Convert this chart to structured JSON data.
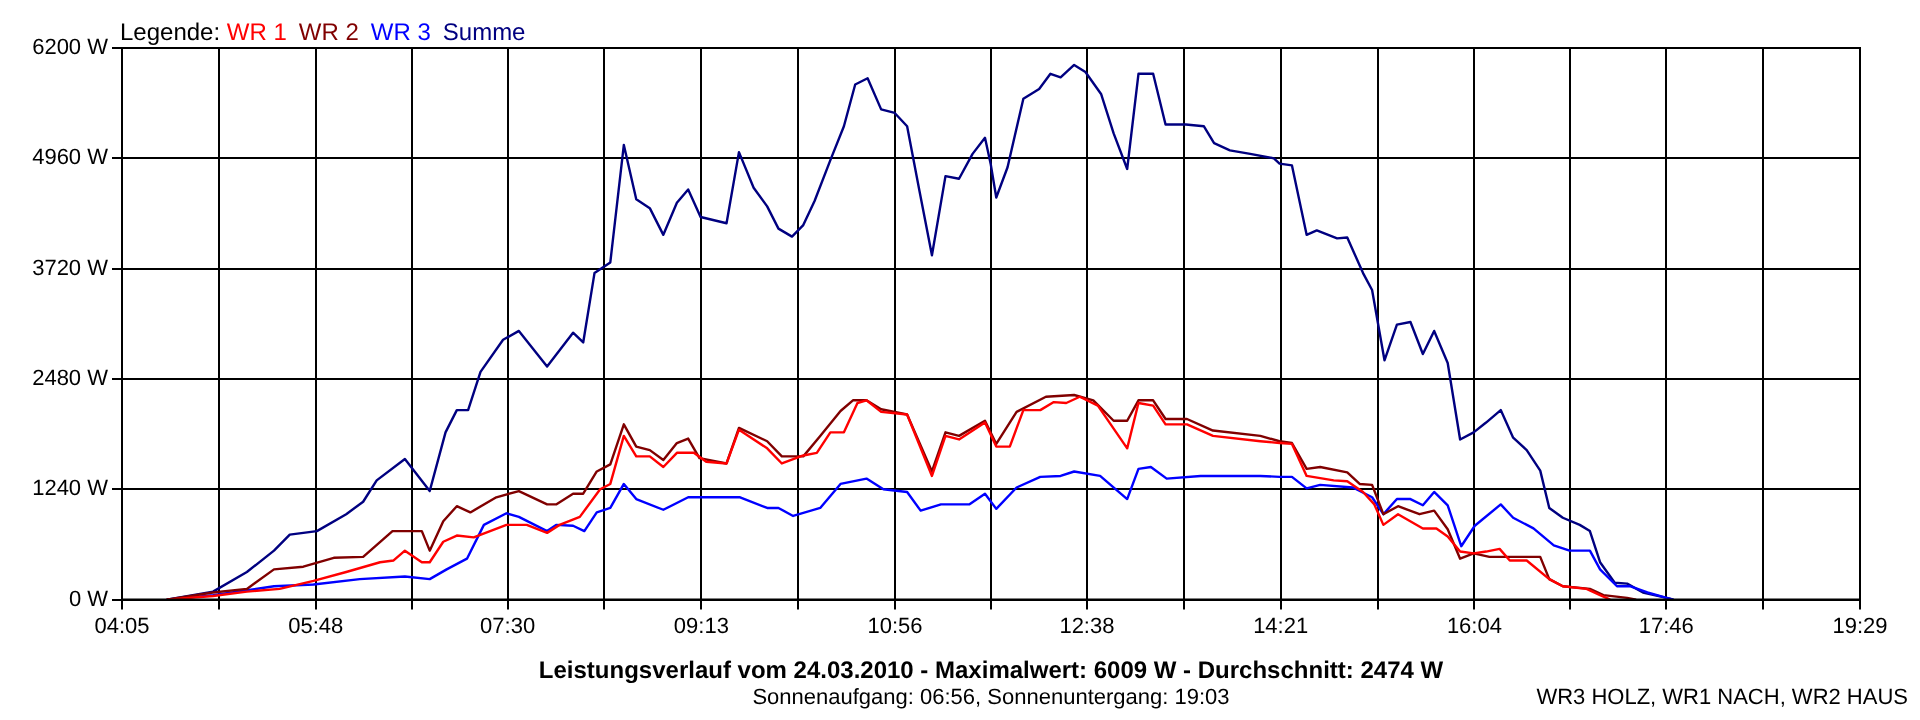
{
  "chart_data": {
    "type": "line",
    "title": "Leistungsverlauf vom 24.03.2010 - Maximalwert: 6009 W - Durchschnitt: 2474 W",
    "subtitle": "Sonnenaufgang: 06:56, Sonnenuntergang: 19:03",
    "annotations": [
      "WR3 HOLZ, WR1 NACH, WR2 HAUS"
    ],
    "legend_title": "Legende:",
    "legend": "top left",
    "grid": true,
    "marker": "none",
    "line_style": "solid",
    "xlim": [
      4.0833,
      19.4833
    ],
    "xticks": [
      {
        "value": 4.0833,
        "label": "04:05"
      },
      {
        "value": 4.9417,
        "label": null
      },
      {
        "value": 5.8,
        "label": "05:48"
      },
      {
        "value": 6.65,
        "label": null
      },
      {
        "value": 7.5,
        "label": "07:30"
      },
      {
        "value": 8.3583,
        "label": null
      },
      {
        "value": 9.2167,
        "label": "09:13"
      },
      {
        "value": 10.075,
        "label": null
      },
      {
        "value": 10.9333,
        "label": "10:56"
      },
      {
        "value": 11.7833,
        "label": null
      },
      {
        "value": 12.6333,
        "label": "12:38"
      },
      {
        "value": 13.4917,
        "label": null
      },
      {
        "value": 14.35,
        "label": "14:21"
      },
      {
        "value": 15.2083,
        "label": null
      },
      {
        "value": 16.0667,
        "label": "16:04"
      },
      {
        "value": 16.9167,
        "label": null
      },
      {
        "value": 17.7667,
        "label": "17:46"
      },
      {
        "value": 18.625,
        "label": null
      },
      {
        "value": 19.4833,
        "label": "19:29"
      }
    ],
    "ylim": [
      0,
      6200
    ],
    "yticks": [
      {
        "value": 0,
        "label": "0 W"
      },
      {
        "value": 1240,
        "label": "1240 W"
      },
      {
        "value": 2480,
        "label": "2480 W"
      },
      {
        "value": 3720,
        "label": "3720 W"
      },
      {
        "value": 4960,
        "label": "4960 W"
      },
      {
        "value": 6200,
        "label": "6200 W"
      }
    ],
    "series": [
      {
        "name": "WR 1",
        "color": "#ff0000",
        "x": [
          4.48,
          4.89,
          5.19,
          5.48,
          5.78,
          6.07,
          6.37,
          6.49,
          6.59,
          6.74,
          6.81,
          6.93,
          7.05,
          7.2,
          7.49,
          7.67,
          7.85,
          7.96,
          8.14,
          8.32,
          8.41,
          8.53,
          8.64,
          8.76,
          8.88,
          9.0,
          9.15,
          9.26,
          9.44,
          9.55,
          9.8,
          9.93,
          10.12,
          10.24,
          10.36,
          10.48,
          10.6,
          10.68,
          10.81,
          11.04,
          11.26,
          11.38,
          11.5,
          11.73,
          11.83,
          11.95,
          12.07,
          12.22,
          12.34,
          12.45,
          12.57,
          12.73,
          12.99,
          13.09,
          13.22,
          13.33,
          13.52,
          13.75,
          14.17,
          14.34,
          14.45,
          14.58,
          14.82,
          14.94,
          15.08,
          15.18,
          15.26,
          15.39,
          15.61,
          15.73,
          15.83,
          15.94,
          16.06,
          16.17,
          16.29,
          16.38,
          16.53,
          16.73,
          16.85,
          17.06,
          17.18,
          17.27
        ],
        "values": [
          0,
          40,
          90,
          120,
          210,
          310,
          420,
          440,
          550,
          420,
          420,
          650,
          720,
          700,
          840,
          840,
          750,
          840,
          930,
          1240,
          1300,
          1840,
          1610,
          1610,
          1490,
          1650,
          1650,
          1550,
          1530,
          1910,
          1700,
          1530,
          1620,
          1650,
          1880,
          1880,
          2210,
          2240,
          2110,
          2080,
          1390,
          1840,
          1800,
          1990,
          1720,
          1720,
          2130,
          2130,
          2220,
          2210,
          2280,
          2180,
          1700,
          2210,
          2180,
          1970,
          1970,
          1840,
          1780,
          1760,
          1750,
          1390,
          1340,
          1330,
          1210,
          1070,
          840,
          960,
          800,
          800,
          710,
          540,
          520,
          540,
          570,
          440,
          440,
          230,
          150,
          120,
          50,
          0
        ]
      },
      {
        "name": "WR 2",
        "color": "#800000",
        "x": [
          4.48,
          4.89,
          5.19,
          5.43,
          5.69,
          5.96,
          6.22,
          6.48,
          6.74,
          6.81,
          6.93,
          7.05,
          7.17,
          7.4,
          7.6,
          7.85,
          7.93,
          8.08,
          8.17,
          8.29,
          8.41,
          8.53,
          8.64,
          8.76,
          8.88,
          9.0,
          9.1,
          9.2,
          9.44,
          9.55,
          9.8,
          9.93,
          10.12,
          10.27,
          10.45,
          10.56,
          10.68,
          10.81,
          11.04,
          11.26,
          11.38,
          11.5,
          11.73,
          11.83,
          12.01,
          12.27,
          12.52,
          12.69,
          12.87,
          12.99,
          13.09,
          13.22,
          13.33,
          13.52,
          13.75,
          14.17,
          14.34,
          14.45,
          14.58,
          14.7,
          14.94,
          15.05,
          15.16,
          15.26,
          15.39,
          15.58,
          15.71,
          15.83,
          15.94,
          16.06,
          16.2,
          16.41,
          16.65,
          16.73,
          16.85,
          17.09,
          17.21,
          17.42,
          17.5
        ],
        "values": [
          0,
          80,
          120,
          340,
          370,
          470,
          480,
          770,
          770,
          550,
          880,
          1050,
          980,
          1150,
          1220,
          1070,
          1070,
          1190,
          1190,
          1440,
          1520,
          1970,
          1720,
          1680,
          1570,
          1760,
          1810,
          1590,
          1530,
          1930,
          1780,
          1610,
          1610,
          1840,
          2120,
          2240,
          2240,
          2140,
          2080,
          1440,
          1880,
          1840,
          2010,
          1750,
          2110,
          2280,
          2300,
          2240,
          2010,
          2010,
          2240,
          2240,
          2030,
          2030,
          1900,
          1840,
          1780,
          1760,
          1470,
          1490,
          1430,
          1300,
          1290,
          960,
          1050,
          960,
          1000,
          790,
          460,
          520,
          480,
          480,
          480,
          230,
          150,
          120,
          50,
          20,
          0
        ]
      },
      {
        "name": "WR 3",
        "color": "#0000ff",
        "x": [
          4.48,
          4.89,
          5.43,
          5.78,
          6.19,
          6.59,
          6.81,
          6.96,
          7.14,
          7.29,
          7.49,
          7.6,
          7.85,
          7.93,
          8.08,
          8.18,
          8.29,
          8.41,
          8.53,
          8.64,
          8.88,
          9.1,
          9.35,
          9.56,
          9.8,
          9.9,
          10.03,
          10.27,
          10.45,
          10.68,
          10.83,
          11.04,
          11.16,
          11.34,
          11.59,
          11.73,
          11.83,
          12.01,
          12.22,
          12.4,
          12.52,
          12.75,
          12.99,
          13.09,
          13.2,
          13.34,
          13.64,
          14.17,
          14.34,
          14.45,
          14.58,
          14.7,
          14.99,
          15.16,
          15.26,
          15.38,
          15.5,
          15.61,
          15.71,
          15.83,
          15.95,
          16.07,
          16.3,
          16.41,
          16.59,
          16.77,
          16.91,
          17.09,
          17.18,
          17.33,
          17.45,
          17.6,
          17.77,
          17.83
        ],
        "values": [
          0,
          50,
          150,
          170,
          230,
          260,
          230,
          340,
          460,
          840,
          970,
          930,
          770,
          840,
          830,
          770,
          980,
          1030,
          1300,
          1130,
          1010,
          1150,
          1150,
          1150,
          1030,
          1030,
          940,
          1030,
          1300,
          1360,
          1240,
          1210,
          1000,
          1070,
          1070,
          1190,
          1020,
          1260,
          1380,
          1390,
          1440,
          1390,
          1130,
          1470,
          1490,
          1360,
          1390,
          1390,
          1380,
          1380,
          1250,
          1290,
          1260,
          1150,
          960,
          1130,
          1130,
          1060,
          1210,
          1060,
          600,
          830,
          1070,
          920,
          800,
          610,
          550,
          550,
          340,
          150,
          150,
          80,
          20,
          0
        ]
      },
      {
        "name": "Summe",
        "color": "#000080",
        "x": [
          4.48,
          4.89,
          5.19,
          5.43,
          5.57,
          5.81,
          6.07,
          6.22,
          6.34,
          6.59,
          6.81,
          6.95,
          7.05,
          7.15,
          7.26,
          7.46,
          7.6,
          7.85,
          8.08,
          8.17,
          8.27,
          8.41,
          8.53,
          8.64,
          8.76,
          8.88,
          9.0,
          9.1,
          9.21,
          9.44,
          9.55,
          9.68,
          9.8,
          9.9,
          10.02,
          10.12,
          10.22,
          10.36,
          10.48,
          10.58,
          10.69,
          10.81,
          10.93,
          11.04,
          11.15,
          11.26,
          11.38,
          11.5,
          11.62,
          11.73,
          11.78,
          11.83,
          11.93,
          12.07,
          12.21,
          12.31,
          12.4,
          12.52,
          12.62,
          12.76,
          12.87,
          12.99,
          13.09,
          13.22,
          13.33,
          13.51,
          13.67,
          13.76,
          13.9,
          14.08,
          14.29,
          14.34,
          14.45,
          14.58,
          14.67,
          14.85,
          14.94,
          15.08,
          15.16,
          15.27,
          15.38,
          15.5,
          15.61,
          15.71,
          15.83,
          15.94,
          16.06,
          16.17,
          16.3,
          16.41,
          16.53,
          16.65,
          16.73,
          16.85,
          17.0,
          17.09,
          17.18,
          17.31,
          17.42,
          17.56,
          17.77,
          17.83
        ],
        "values": [
          0,
          90,
          310,
          550,
          730,
          770,
          960,
          1100,
          1340,
          1580,
          1220,
          1880,
          2130,
          2130,
          2560,
          2920,
          3020,
          2620,
          3000,
          2890,
          3670,
          3790,
          5110,
          4500,
          4400,
          4100,
          4460,
          4610,
          4300,
          4230,
          5030,
          4630,
          4420,
          4170,
          4080,
          4210,
          4480,
          4940,
          5320,
          5790,
          5860,
          5510,
          5470,
          5320,
          4590,
          3870,
          4760,
          4730,
          5010,
          5190,
          4900,
          4520,
          4860,
          5630,
          5740,
          5910,
          5870,
          6010,
          5930,
          5680,
          5240,
          4840,
          5910,
          5910,
          5340,
          5340,
          5320,
          5130,
          5050,
          5010,
          4960,
          4900,
          4880,
          4100,
          4150,
          4060,
          4070,
          3670,
          3480,
          2690,
          3090,
          3120,
          2760,
          3020,
          2660,
          1800,
          1880,
          1990,
          2130,
          1820,
          1680,
          1450,
          1030,
          920,
          840,
          770,
          420,
          190,
          180,
          80,
          20,
          0
        ]
      }
    ]
  }
}
